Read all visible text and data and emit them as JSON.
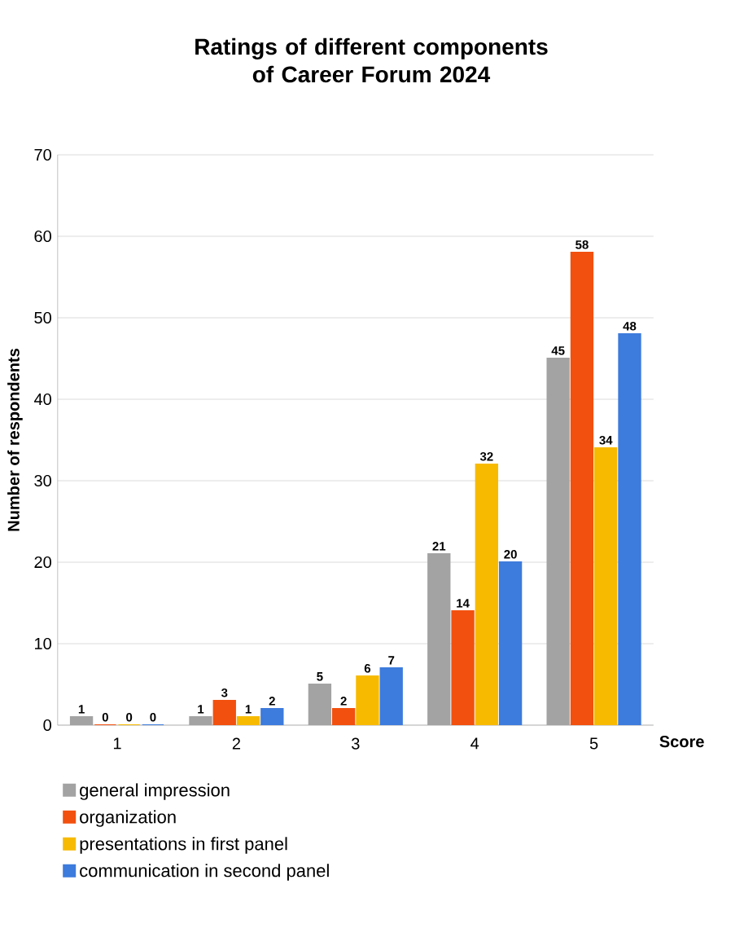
{
  "chart_data": {
    "type": "bar",
    "title": "Ratings of different components of Career Forum 2024",
    "xlabel": "Score",
    "ylabel": "Number of respondents",
    "categories": [
      "1",
      "2",
      "3",
      "4",
      "5"
    ],
    "series": [
      {
        "name": "general impression",
        "color": "#a3a3a3",
        "values": [
          1,
          1,
          5,
          21,
          45
        ]
      },
      {
        "name": "organization",
        "color": "#f2500f",
        "values": [
          0,
          3,
          2,
          14,
          58
        ]
      },
      {
        "name": "presentations in first panel",
        "color": "#f7ba00",
        "values": [
          0,
          1,
          6,
          32,
          34
        ]
      },
      {
        "name": "communication in second panel",
        "color": "#3d7bdc",
        "values": [
          0,
          2,
          7,
          20,
          48
        ]
      }
    ],
    "ylim": [
      0,
      70
    ],
    "yticks": [
      0,
      10,
      20,
      30,
      40,
      50,
      60,
      70
    ],
    "grid": "y",
    "legend": "bottom",
    "data_labels": true
  }
}
